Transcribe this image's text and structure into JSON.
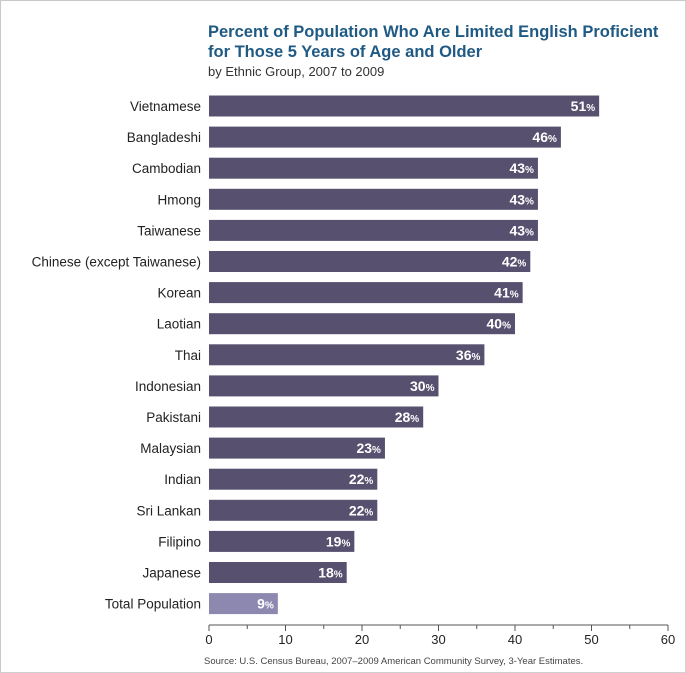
{
  "chart_data": {
    "type": "bar",
    "orientation": "horizontal",
    "title": "Percent of Population Who Are Limited English Proficient for Those 5 Years of Age and Older",
    "subtitle": "by Ethnic Group, 2007 to 2009",
    "source": "Source: U.S. Census Bureau, 2007–2009 American Community Survey, 3-Year Estimates.",
    "categories": [
      "Vietnamese",
      "Bangladeshi",
      "Cambodian",
      "Hmong",
      "Taiwanese",
      "Chinese (except Taiwanese)",
      "Korean",
      "Laotian",
      "Thai",
      "Indonesian",
      "Pakistani",
      "Malaysian",
      "Indian",
      "Sri Lankan",
      "Filipino",
      "Japanese",
      "Total Population"
    ],
    "values": [
      51,
      46,
      43,
      43,
      43,
      42,
      41,
      40,
      36,
      30,
      28,
      23,
      22,
      22,
      19,
      18,
      9
    ],
    "value_suffix": "%",
    "xlim": [
      0,
      60
    ],
    "xticks": [
      0,
      10,
      20,
      30,
      40,
      50,
      60
    ],
    "grid": false,
    "colors": {
      "bar": "#58506f",
      "highlight_bar": "#8c88b0",
      "title": "#1f5a84",
      "axis": "#555555"
    },
    "highlight_category": "Total Population"
  }
}
